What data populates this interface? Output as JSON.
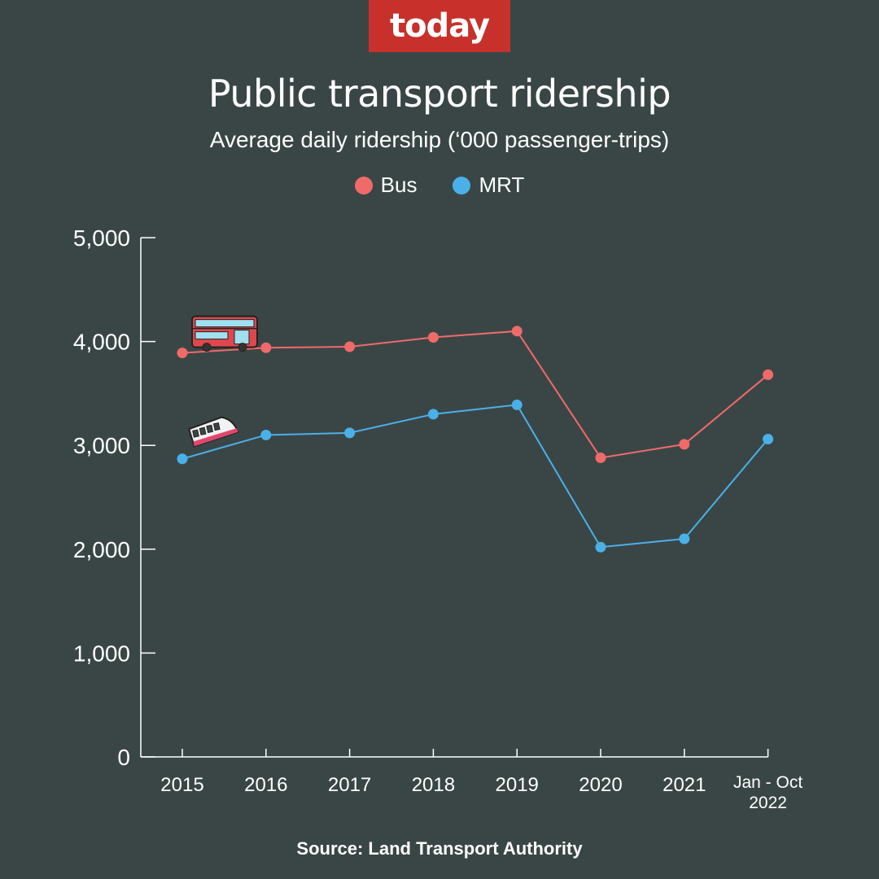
{
  "brand": {
    "logo_text": "today"
  },
  "source": "Source: Land Transport Authority",
  "colors": {
    "background": "#3a4646",
    "bus": "#f06a6a",
    "mrt": "#4ab0e8",
    "brand": "#c8302b"
  },
  "chart_data": {
    "type": "line",
    "title": "Public transport ridership",
    "subtitle": "Average daily ridership (‘000 passenger-trips)",
    "categories": [
      "2015",
      "2016",
      "2017",
      "2018",
      "2019",
      "2020",
      "2021",
      "Jan - Oct 2022"
    ],
    "series": [
      {
        "name": "Bus",
        "color": "#f06a6a",
        "icon": "double-decker-bus-icon",
        "values": [
          3890,
          3940,
          3950,
          4040,
          4100,
          2880,
          3010,
          3680
        ]
      },
      {
        "name": "MRT",
        "color": "#4ab0e8",
        "icon": "train-icon",
        "values": [
          2870,
          3100,
          3120,
          3300,
          3390,
          2020,
          2100,
          3060
        ]
      }
    ],
    "yticks": [
      "0",
      "1,000",
      "2,000",
      "3,000",
      "4,000",
      "5,000"
    ],
    "ylim": [
      0,
      5000
    ],
    "grid": false,
    "legend": "top-center"
  }
}
